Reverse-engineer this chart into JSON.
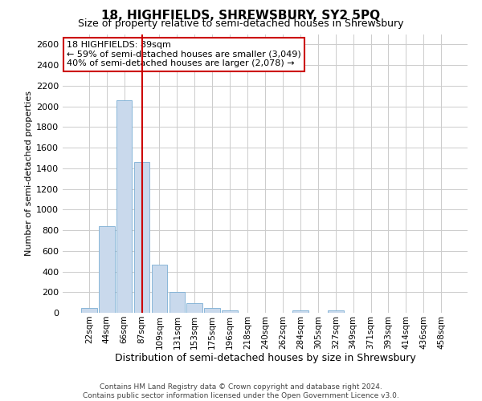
{
  "title": "18, HIGHFIELDS, SHREWSBURY, SY2 5PQ",
  "subtitle": "Size of property relative to semi-detached houses in Shrewsbury",
  "xlabel": "Distribution of semi-detached houses by size in Shrewsbury",
  "ylabel": "Number of semi-detached properties",
  "footer_line1": "Contains HM Land Registry data © Crown copyright and database right 2024.",
  "footer_line2": "Contains public sector information licensed under the Open Government Licence v3.0.",
  "annotation_line1": "18 HIGHFIELDS: 89sqm",
  "annotation_line2": "← 59% of semi-detached houses are smaller (3,049)",
  "annotation_line3": "40% of semi-detached houses are larger (2,078) →",
  "bar_color": "#c9d9ec",
  "bar_edgecolor": "#7bafd4",
  "vline_color": "#cc0000",
  "annotation_box_edgecolor": "#cc0000",
  "background_color": "#ffffff",
  "grid_color": "#cccccc",
  "categories": [
    "22sqm",
    "44sqm",
    "66sqm",
    "87sqm",
    "109sqm",
    "131sqm",
    "153sqm",
    "175sqm",
    "196sqm",
    "218sqm",
    "240sqm",
    "262sqm",
    "284sqm",
    "305sqm",
    "327sqm",
    "349sqm",
    "371sqm",
    "393sqm",
    "414sqm",
    "436sqm",
    "458sqm"
  ],
  "values": [
    50,
    840,
    2060,
    1460,
    470,
    200,
    95,
    45,
    25,
    0,
    0,
    0,
    25,
    0,
    20,
    0,
    0,
    0,
    0,
    0,
    0
  ],
  "vline_x": 3,
  "ylim": [
    0,
    2700
  ],
  "yticks": [
    0,
    200,
    400,
    600,
    800,
    1000,
    1200,
    1400,
    1600,
    1800,
    2000,
    2200,
    2400,
    2600
  ],
  "title_fontsize": 11,
  "subtitle_fontsize": 9,
  "ylabel_fontsize": 8,
  "xlabel_fontsize": 9,
  "tick_fontsize": 8,
  "xtick_fontsize": 7.5,
  "footer_fontsize": 6.5,
  "annot_fontsize": 8
}
